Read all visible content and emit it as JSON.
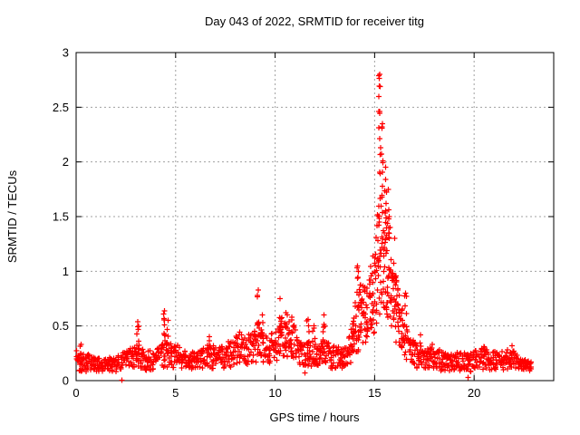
{
  "chart_data": {
    "type": "scatter",
    "title": "Day 043 of 2022, SRMTID for receiver titg",
    "xlabel": "GPS time / hours",
    "ylabel": "SRMTID / TECUs",
    "xlim": [
      0,
      24
    ],
    "ylim": [
      0,
      3
    ],
    "xticks": [
      0,
      5,
      10,
      15,
      20
    ],
    "yticks": [
      0,
      0.5,
      1,
      1.5,
      2,
      2.5,
      3
    ],
    "grid": true,
    "grid_style": "dotted",
    "legend": "none",
    "marker": "plus",
    "marker_color": "#ff0000",
    "grid_color": "#a0a0a0",
    "border_color": "#000000",
    "x_start": 0.0,
    "x_end": 22.9,
    "peak": {
      "x": 15.25,
      "y": 2.8
    },
    "band_envelope": [
      [
        0.0,
        0.08,
        0.3
      ],
      [
        0.5,
        0.08,
        0.25
      ],
      [
        1.2,
        0.08,
        0.2
      ],
      [
        2.0,
        0.08,
        0.22
      ],
      [
        2.6,
        0.1,
        0.28
      ],
      [
        3.1,
        0.12,
        0.35
      ],
      [
        3.5,
        0.08,
        0.26
      ],
      [
        4.1,
        0.1,
        0.3
      ],
      [
        4.5,
        0.12,
        0.38
      ],
      [
        5.0,
        0.12,
        0.34
      ],
      [
        5.6,
        0.1,
        0.27
      ],
      [
        6.2,
        0.1,
        0.26
      ],
      [
        6.7,
        0.1,
        0.34
      ],
      [
        7.2,
        0.1,
        0.3
      ],
      [
        7.8,
        0.12,
        0.38
      ],
      [
        8.3,
        0.14,
        0.45
      ],
      [
        8.8,
        0.15,
        0.42
      ],
      [
        9.2,
        0.17,
        0.5
      ],
      [
        9.6,
        0.15,
        0.4
      ],
      [
        10.0,
        0.16,
        0.48
      ],
      [
        10.3,
        0.2,
        0.58
      ],
      [
        10.7,
        0.2,
        0.55
      ],
      [
        11.1,
        0.17,
        0.48
      ],
      [
        11.4,
        0.1,
        0.33
      ],
      [
        11.8,
        0.12,
        0.38
      ],
      [
        12.1,
        0.12,
        0.33
      ],
      [
        12.5,
        0.12,
        0.38
      ],
      [
        12.9,
        0.1,
        0.32
      ],
      [
        13.3,
        0.1,
        0.3
      ],
      [
        13.7,
        0.14,
        0.36
      ],
      [
        14.0,
        0.22,
        0.7
      ],
      [
        14.3,
        0.28,
        0.95
      ],
      [
        14.6,
        0.32,
        0.85
      ],
      [
        14.9,
        0.38,
        1.1
      ],
      [
        15.1,
        0.5,
        1.45
      ],
      [
        15.3,
        0.6,
        1.75
      ],
      [
        15.5,
        0.62,
        1.6
      ],
      [
        15.7,
        0.5,
        1.5
      ],
      [
        15.9,
        0.42,
        1.15
      ],
      [
        16.1,
        0.32,
        0.92
      ],
      [
        16.4,
        0.24,
        0.65
      ],
      [
        16.7,
        0.17,
        0.48
      ],
      [
        17.0,
        0.12,
        0.36
      ],
      [
        17.5,
        0.1,
        0.3
      ],
      [
        18.0,
        0.1,
        0.3
      ],
      [
        18.6,
        0.08,
        0.26
      ],
      [
        19.2,
        0.09,
        0.26
      ],
      [
        19.8,
        0.08,
        0.25
      ],
      [
        20.3,
        0.1,
        0.3
      ],
      [
        20.8,
        0.1,
        0.28
      ],
      [
        21.3,
        0.09,
        0.26
      ],
      [
        21.8,
        0.11,
        0.3
      ],
      [
        22.3,
        0.09,
        0.22
      ],
      [
        22.9,
        0.07,
        0.17
      ]
    ],
    "spikes": [
      [
        0.25,
        0.15,
        0.33,
        4
      ],
      [
        3.1,
        0.22,
        0.54,
        8
      ],
      [
        4.45,
        0.28,
        0.64,
        9
      ],
      [
        4.62,
        0.24,
        0.55,
        6
      ],
      [
        6.7,
        0.18,
        0.4,
        5
      ],
      [
        9.15,
        0.28,
        0.83,
        10
      ],
      [
        9.35,
        0.25,
        0.6,
        5
      ],
      [
        10.25,
        0.28,
        0.75,
        8
      ],
      [
        10.55,
        0.28,
        0.62,
        6
      ],
      [
        10.85,
        0.28,
        0.58,
        5
      ],
      [
        11.65,
        0.18,
        0.56,
        7
      ],
      [
        11.95,
        0.18,
        0.5,
        5
      ],
      [
        12.45,
        0.2,
        0.6,
        8
      ],
      [
        13.9,
        0.25,
        0.52,
        5
      ],
      [
        14.15,
        0.4,
        1.05,
        7
      ],
      [
        15.25,
        1.8,
        2.8,
        13
      ],
      [
        15.4,
        1.55,
        2.35,
        9
      ],
      [
        15.55,
        1.4,
        1.95,
        7
      ],
      [
        15.7,
        1.3,
        1.75,
        6
      ],
      [
        16.0,
        0.6,
        1.3,
        7
      ],
      [
        16.55,
        0.3,
        0.8,
        6
      ],
      [
        17.3,
        0.15,
        0.42,
        5
      ],
      [
        17.9,
        0.13,
        0.33,
        4
      ],
      [
        20.5,
        0.12,
        0.31,
        4
      ],
      [
        21.9,
        0.12,
        0.32,
        4
      ]
    ],
    "outliers": [
      [
        2.3,
        0.005
      ],
      [
        11.5,
        0.07
      ],
      [
        19.7,
        0.03
      ],
      [
        15.22,
        2.79
      ],
      [
        15.28,
        2.69
      ]
    ]
  }
}
